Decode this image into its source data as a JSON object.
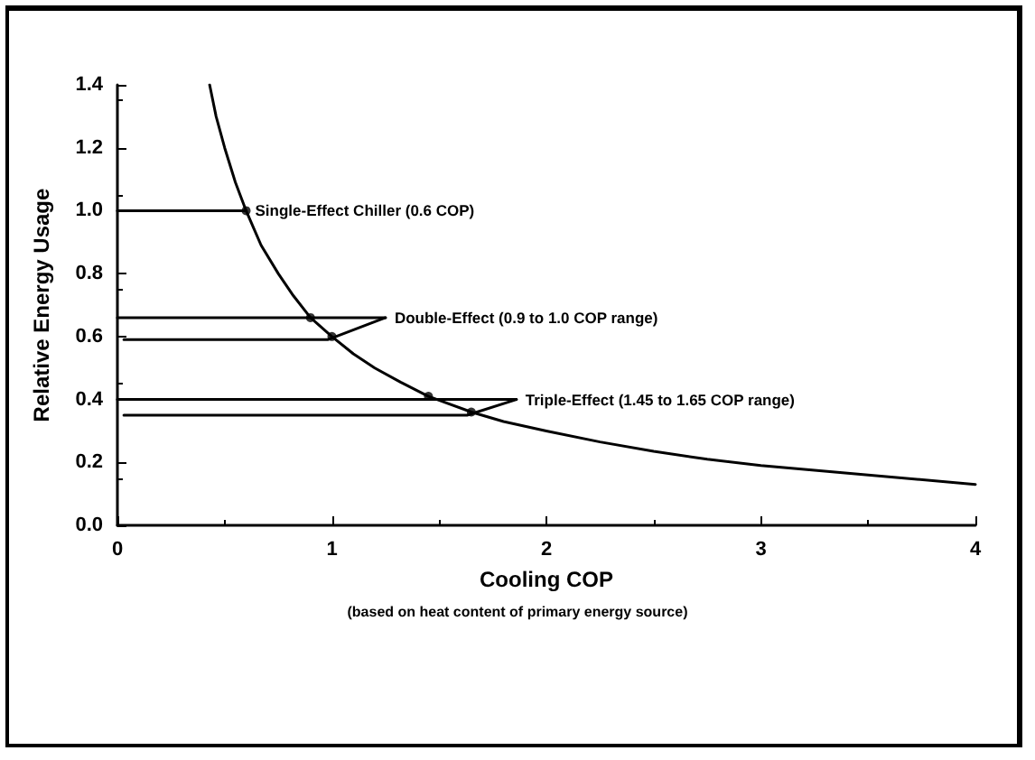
{
  "chart_data": {
    "type": "line",
    "xlabel": "Cooling COP",
    "ylabel": "Relative Energy Usage",
    "xlim": [
      0,
      4
    ],
    "ylim": [
      0,
      1.4
    ],
    "xticks": [
      0,
      1,
      2,
      3,
      4
    ],
    "yticks": [
      {
        "value": 0,
        "label": "0.0"
      },
      {
        "value": 0.2,
        "label": "0.2"
      },
      {
        "value": 0.4,
        "label": "0.4"
      },
      {
        "value": 0.6,
        "label": "0.6"
      },
      {
        "value": 0.8,
        "label": "0.8"
      },
      {
        "value": 1.0,
        "label": "1.0"
      },
      {
        "value": 1.2,
        "label": "1.2"
      },
      {
        "value": 1.4,
        "label": "1.4"
      }
    ],
    "grid": false,
    "marker": "none",
    "line_style": "solid",
    "series": [
      {
        "color": "#000000",
        "x": [
          0.43,
          0.46,
          0.5,
          0.55,
          0.6,
          0.67,
          0.75,
          0.82,
          0.9,
          1.0,
          1.1,
          1.2,
          1.32,
          1.45,
          1.65,
          1.8,
          2.0,
          2.25,
          2.5,
          2.75,
          3.0,
          3.5,
          4.0
        ],
        "values": [
          1.4,
          1.3,
          1.2,
          1.09,
          1.0,
          0.89,
          0.8,
          0.73,
          0.66,
          0.6,
          0.545,
          0.5,
          0.455,
          0.41,
          0.36,
          0.33,
          0.3,
          0.265,
          0.235,
          0.21,
          0.19,
          0.16,
          0.13
        ]
      },
      {
        "color": "#000000",
        "x": [
          0,
          0.6
        ],
        "values": [
          1.0,
          1.0
        ]
      },
      {
        "color": "#000000",
        "x": [
          0,
          1.25
        ],
        "values": [
          0.66,
          0.66
        ]
      },
      {
        "color": "#000000",
        "x": [
          0.03,
          0.98,
          1.25
        ],
        "values": [
          0.59,
          0.59,
          0.66
        ]
      },
      {
        "color": "#000000",
        "x": [
          0,
          1.86
        ],
        "values": [
          0.4,
          0.4
        ]
      },
      {
        "color": "#000000",
        "x": [
          0.03,
          1.63,
          1.86
        ],
        "values": [
          0.35,
          0.35,
          0.4
        ]
      },
      {
        "type": "scatter",
        "marker": "circle",
        "color": "#000000",
        "x": [
          0.6,
          0.9,
          1.0,
          1.45,
          1.65
        ],
        "values": [
          1.0,
          0.66,
          0.6,
          0.41,
          0.36
        ]
      }
    ],
    "annotations": [
      {
        "text": "Single-Effect Chiller (0.6 COP)",
        "x": 0.6,
        "y": 1.0
      },
      {
        "text": "Double-Effect (0.9 to 1.0 COP range)",
        "x": 1.25,
        "y": 0.66
      },
      {
        "text": "Triple-Effect (1.45 to 1.65 COP range)",
        "x": 1.86,
        "y": 0.4
      },
      "(based on heat content of primary energy source)"
    ]
  }
}
